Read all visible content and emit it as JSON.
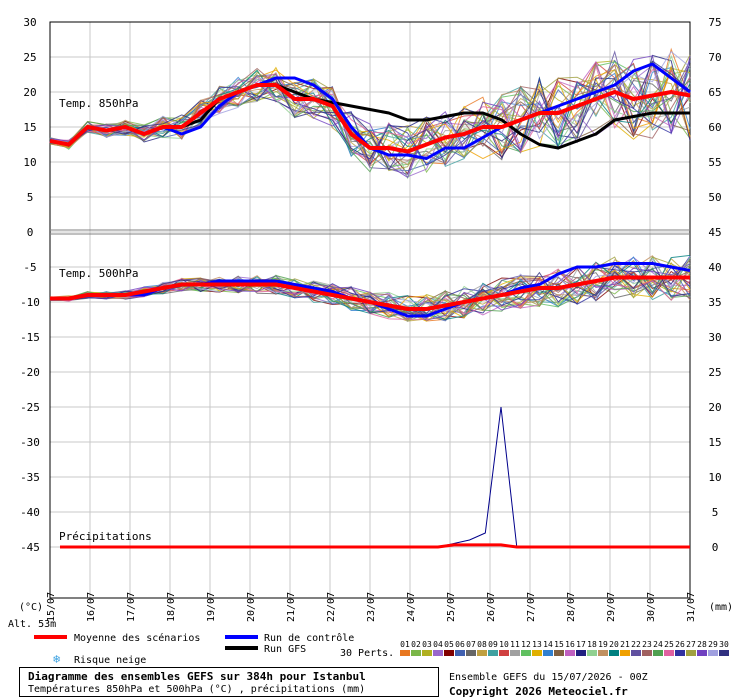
{
  "chart_data": {
    "type": "line",
    "title": "Diagramme des ensembles GEFS sur 384h pour Istanbul",
    "subtitle": "Températures 850hPa et 500hPa (°C) , précipitations (mm)",
    "x_dates": [
      "15/07",
      "16/07",
      "17/07",
      "18/07",
      "19/07",
      "20/07",
      "21/07",
      "22/07",
      "23/07",
      "24/07",
      "25/07",
      "26/07",
      "27/07",
      "28/07",
      "29/07",
      "30/07",
      "31/07"
    ],
    "left_axis_ticks": [
      30,
      25,
      20,
      15,
      10,
      5,
      0,
      -5,
      -10,
      -15,
      -20,
      -25,
      -30,
      -35,
      -40,
      -45
    ],
    "right_axis_ticks": [
      75,
      70,
      65,
      60,
      55,
      50,
      45,
      40,
      35,
      30,
      25,
      20,
      15,
      10,
      5,
      0
    ],
    "left_unit": "(°C)",
    "right_unit": "(mm)",
    "altitude_label": "Alt. 53m",
    "panels": {
      "t850_label": "Temp. 850hPa",
      "t500_label": "Temp. 500hPa",
      "precip_label": "Précipitations"
    },
    "series": [
      {
        "name": "Moyenne des scénarios",
        "color": "#ff0000",
        "t850": [
          13,
          12.5,
          15,
          14.5,
          15,
          14,
          15,
          15,
          17,
          19,
          20,
          21,
          21,
          19,
          19,
          18,
          14,
          12,
          12,
          11.5,
          12.5,
          13.5,
          14,
          15,
          15,
          16,
          17,
          17,
          18,
          19,
          20,
          19,
          19.5,
          20,
          19.5
        ],
        "t500": [
          -9.5,
          -9.5,
          -9,
          -9,
          -9,
          -8.5,
          -8,
          -7.5,
          -7.5,
          -7.5,
          -7.5,
          -7.5,
          -7.5,
          -8,
          -8.5,
          -9,
          -9.5,
          -10,
          -10.5,
          -11,
          -11,
          -10.5,
          -10,
          -9.5,
          -9,
          -8.5,
          -8,
          -8,
          -7.5,
          -7,
          -6.5,
          -6.5,
          -6.5,
          -6.5,
          -6.5
        ]
      },
      {
        "name": "Run de contrôle",
        "color": "#0000ff",
        "t850": [
          13,
          12.5,
          15,
          14.5,
          15,
          14,
          15,
          14,
          15,
          18,
          20,
          21,
          22,
          22,
          21,
          19,
          15,
          12,
          11,
          11,
          10.5,
          12,
          12,
          13.5,
          15,
          16,
          17,
          18,
          19,
          20,
          21,
          23,
          24,
          22,
          20
        ],
        "t500": [
          -9.5,
          -9.5,
          -9,
          -9,
          -9,
          -9,
          -8,
          -7.5,
          -7.5,
          -7,
          -7,
          -7,
          -7,
          -7.5,
          -8,
          -8.5,
          -9.5,
          -10,
          -11,
          -12,
          -12,
          -11,
          -10,
          -9.5,
          -9,
          -8,
          -7.5,
          -6,
          -5,
          -5,
          -4.5,
          -4.5,
          -4.5,
          -5,
          -5.5
        ]
      },
      {
        "name": "Run GFS",
        "color": "#000000",
        "t850": [
          13,
          12.5,
          15,
          14.5,
          15,
          14,
          15,
          15,
          16,
          19,
          20,
          21,
          21,
          20,
          19,
          18.5,
          18,
          17.5,
          17,
          16,
          16,
          16.5,
          17,
          17,
          16,
          14,
          12.5,
          12,
          13,
          14,
          16,
          16.5,
          17,
          17,
          17
        ]
      }
    ],
    "precipitation": {
      "control_peak_mm": 20,
      "control_peak_date": "25/07",
      "series_values_mm": [
        0,
        0,
        0,
        0,
        0,
        0,
        0,
        0,
        0,
        0,
        0,
        0,
        0,
        0,
        0,
        0,
        0,
        0,
        0,
        0,
        0,
        0,
        0,
        0,
        0,
        0.5,
        1,
        2,
        20,
        0,
        0,
        0,
        0,
        0,
        0,
        0,
        0,
        0,
        0,
        0,
        0
      ]
    },
    "legend_perts": [
      "01",
      "02",
      "03",
      "04",
      "05",
      "06",
      "07",
      "08",
      "09",
      "10",
      "11",
      "12",
      "13",
      "14",
      "15",
      "16",
      "17",
      "18",
      "19",
      "20",
      "21",
      "22",
      "23",
      "24",
      "25",
      "26",
      "27",
      "28",
      "29",
      "30"
    ],
    "pert_colors": [
      "#e87720",
      "#7ab648",
      "#b0b020",
      "#9966cc",
      "#800000",
      "#4060b0",
      "#666666",
      "#c0a040",
      "#40a0a0",
      "#d04040",
      "#a0a0a0",
      "#60c060",
      "#e0b000",
      "#3080d0",
      "#806040",
      "#c060c0",
      "#202080",
      "#90d090",
      "#c09060",
      "#008080",
      "#f0a000",
      "#6050a0",
      "#a06060",
      "#50a050",
      "#e060a0",
      "#3030a0",
      "#a0a040",
      "#7040c0",
      "#a0a0e0",
      "#303080"
    ],
    "legend_perts_label": "30 Perts.",
    "legend_snow": "Risque neige",
    "ensemble_text": "Ensemble GEFS du 15/07/2026 - 00Z",
    "copyright": "Copyright 2026 Meteociel.fr"
  }
}
